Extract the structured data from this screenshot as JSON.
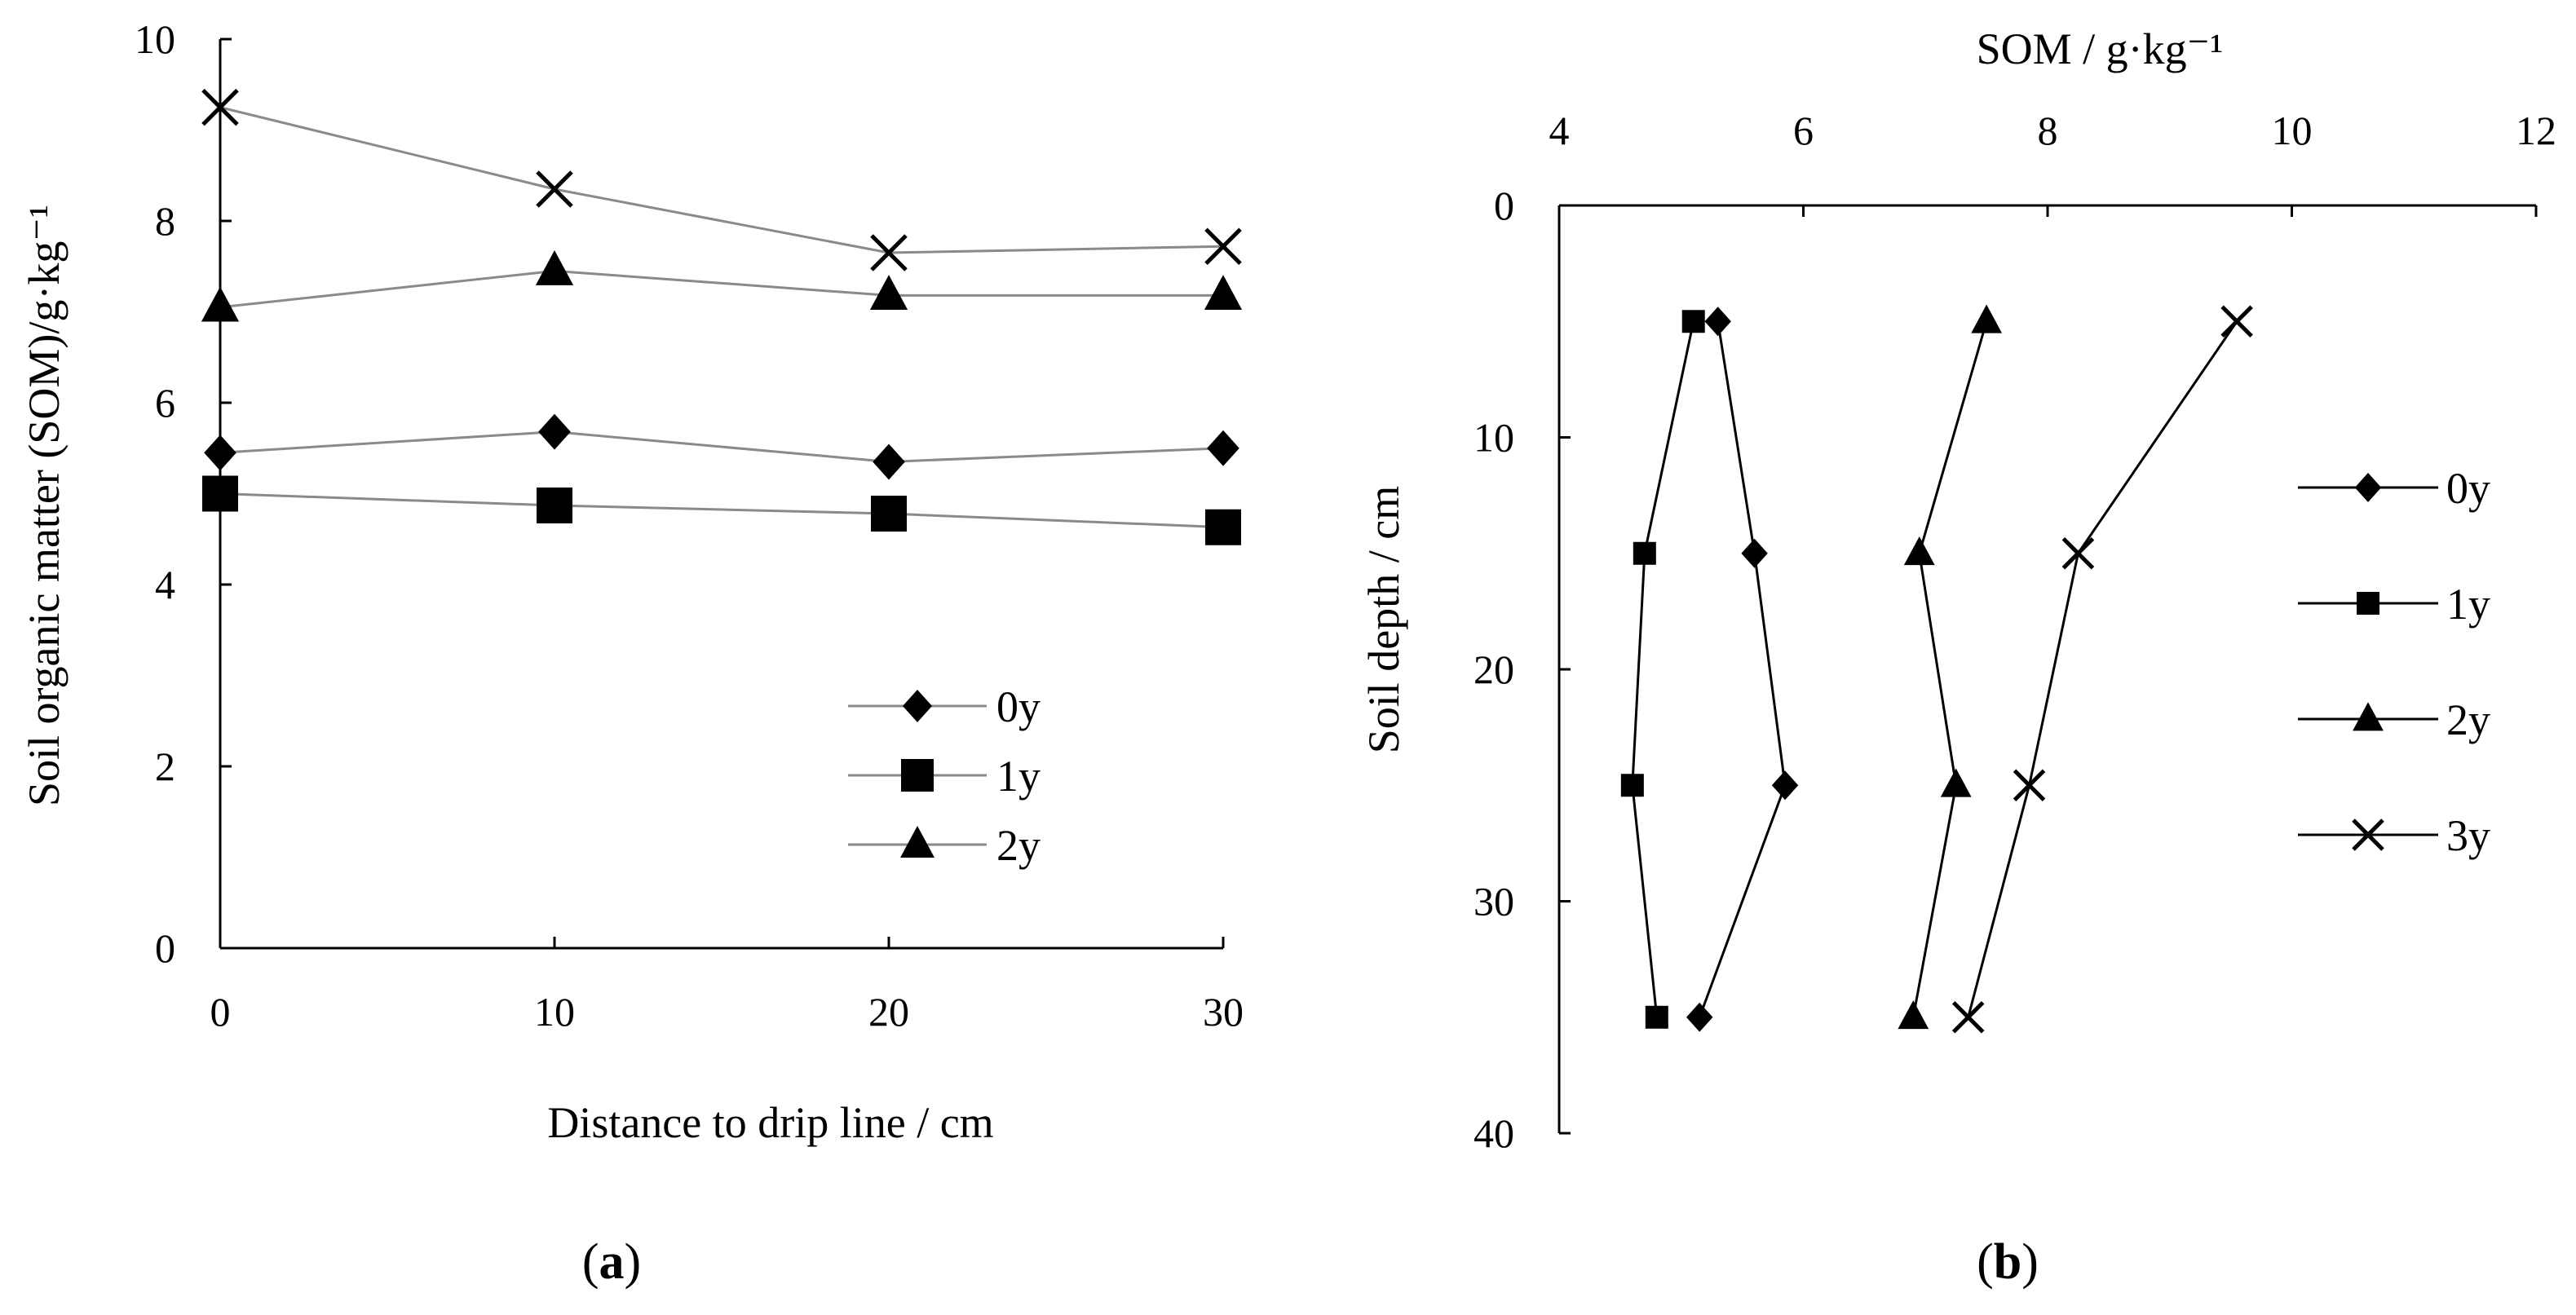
{
  "chart_data": [
    {
      "type": "line",
      "panel": "a",
      "title": "",
      "xlabel": "Distance to drip line / cm",
      "ylabel": "Soil organic matter (SOM)/g·kg⁻¹",
      "xlim": [
        0,
        30
      ],
      "ylim": [
        0,
        10
      ],
      "xticks": [
        0,
        10,
        20,
        30
      ],
      "yticks": [
        0,
        2,
        4,
        6,
        8,
        10
      ],
      "grid": false,
      "legend_position": "lower-right",
      "x": [
        0,
        10,
        20,
        30
      ],
      "series": [
        {
          "name": "0y",
          "marker": "diamond",
          "values": [
            5.45,
            5.68,
            5.35,
            5.5
          ]
        },
        {
          "name": "1y",
          "marker": "square",
          "values": [
            5.0,
            4.87,
            4.78,
            4.63
          ]
        },
        {
          "name": "2y",
          "marker": "triangle",
          "values": [
            7.05,
            7.45,
            7.18,
            7.18
          ]
        },
        {
          "name": "3y",
          "marker": "cross",
          "legend": false,
          "values": [
            9.25,
            8.35,
            7.65,
            7.72
          ]
        }
      ],
      "legend_entries": [
        "0y",
        "1y",
        "2y"
      ]
    },
    {
      "type": "line",
      "panel": "b",
      "title": "",
      "xlabel": "SOM / g·kg⁻¹",
      "ylabel": "Soil depth / cm",
      "xlim": [
        4,
        12
      ],
      "ylim": [
        0,
        40
      ],
      "x_axis_position": "top",
      "y_axis_inverted": true,
      "xticks": [
        4,
        6,
        8,
        10,
        12
      ],
      "yticks": [
        0,
        10,
        20,
        30,
        40
      ],
      "grid": false,
      "legend_position": "right",
      "depths": [
        5,
        15,
        25,
        35
      ],
      "series": [
        {
          "name": "0y",
          "marker": "diamond",
          "values": [
            5.3,
            5.6,
            5.85,
            5.15
          ]
        },
        {
          "name": "1y",
          "marker": "square",
          "values": [
            5.1,
            4.7,
            4.6,
            4.8
          ]
        },
        {
          "name": "2y",
          "marker": "triangle",
          "values": [
            7.5,
            6.95,
            7.25,
            6.9
          ]
        },
        {
          "name": "3y",
          "marker": "cross",
          "values": [
            9.55,
            8.25,
            7.85,
            7.35
          ]
        }
      ],
      "legend_entries": [
        "0y",
        "1y",
        "2y",
        "3y"
      ]
    }
  ],
  "panel_labels": {
    "a": "a",
    "b": "b"
  },
  "colors": {
    "line_a": "#8a8a8a",
    "line_b": "#000000",
    "marker": "#000000",
    "axis": "#000000"
  }
}
